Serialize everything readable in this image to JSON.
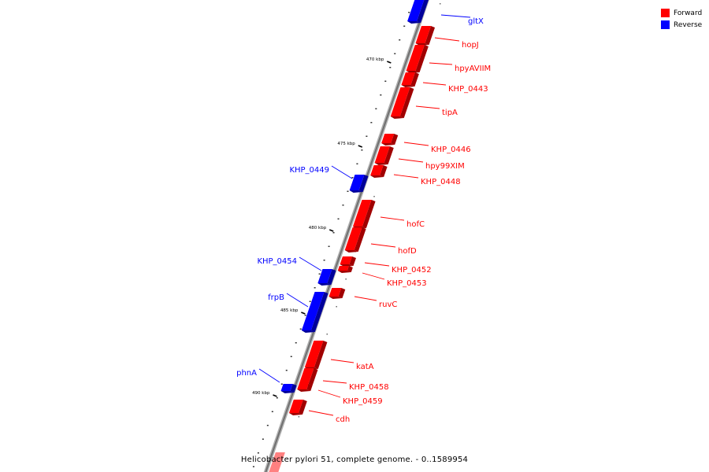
{
  "legend": {
    "forward": {
      "label": "Forward",
      "color": "#ff0000"
    },
    "reverse": {
      "label": "Reverse",
      "color": "#0000ff"
    }
  },
  "footer": "Helicobacter pylori 51, complete genome. - 0..1589954",
  "tick_labels": [
    "470 kbp",
    "475 kbp",
    "480 kbp",
    "485 kbp",
    "490 kbp"
  ],
  "genes": [
    {
      "name": "gltX",
      "strand": "reverse"
    },
    {
      "name": "hopJ",
      "strand": "forward"
    },
    {
      "name": "hpyAVIIM",
      "strand": "forward"
    },
    {
      "name": "KHP_0443",
      "strand": "forward"
    },
    {
      "name": "tipA",
      "strand": "forward"
    },
    {
      "name": "KHP_0446",
      "strand": "forward"
    },
    {
      "name": "hpy99XIM",
      "strand": "forward"
    },
    {
      "name": "KHP_0448",
      "strand": "forward"
    },
    {
      "name": "KHP_0449",
      "strand": "reverse"
    },
    {
      "name": "hofC",
      "strand": "forward"
    },
    {
      "name": "hofD",
      "strand": "forward"
    },
    {
      "name": "KHP_0452",
      "strand": "forward"
    },
    {
      "name": "KHP_0453",
      "strand": "forward"
    },
    {
      "name": "KHP_0454",
      "strand": "reverse"
    },
    {
      "name": "ruvC",
      "strand": "forward"
    },
    {
      "name": "frpB",
      "strand": "reverse"
    },
    {
      "name": "katA",
      "strand": "forward"
    },
    {
      "name": "KHP_0458",
      "strand": "forward"
    },
    {
      "name": "phnA",
      "strand": "reverse"
    },
    {
      "name": "KHP_0459",
      "strand": "forward"
    },
    {
      "name": "cdh",
      "strand": "forward"
    }
  ]
}
